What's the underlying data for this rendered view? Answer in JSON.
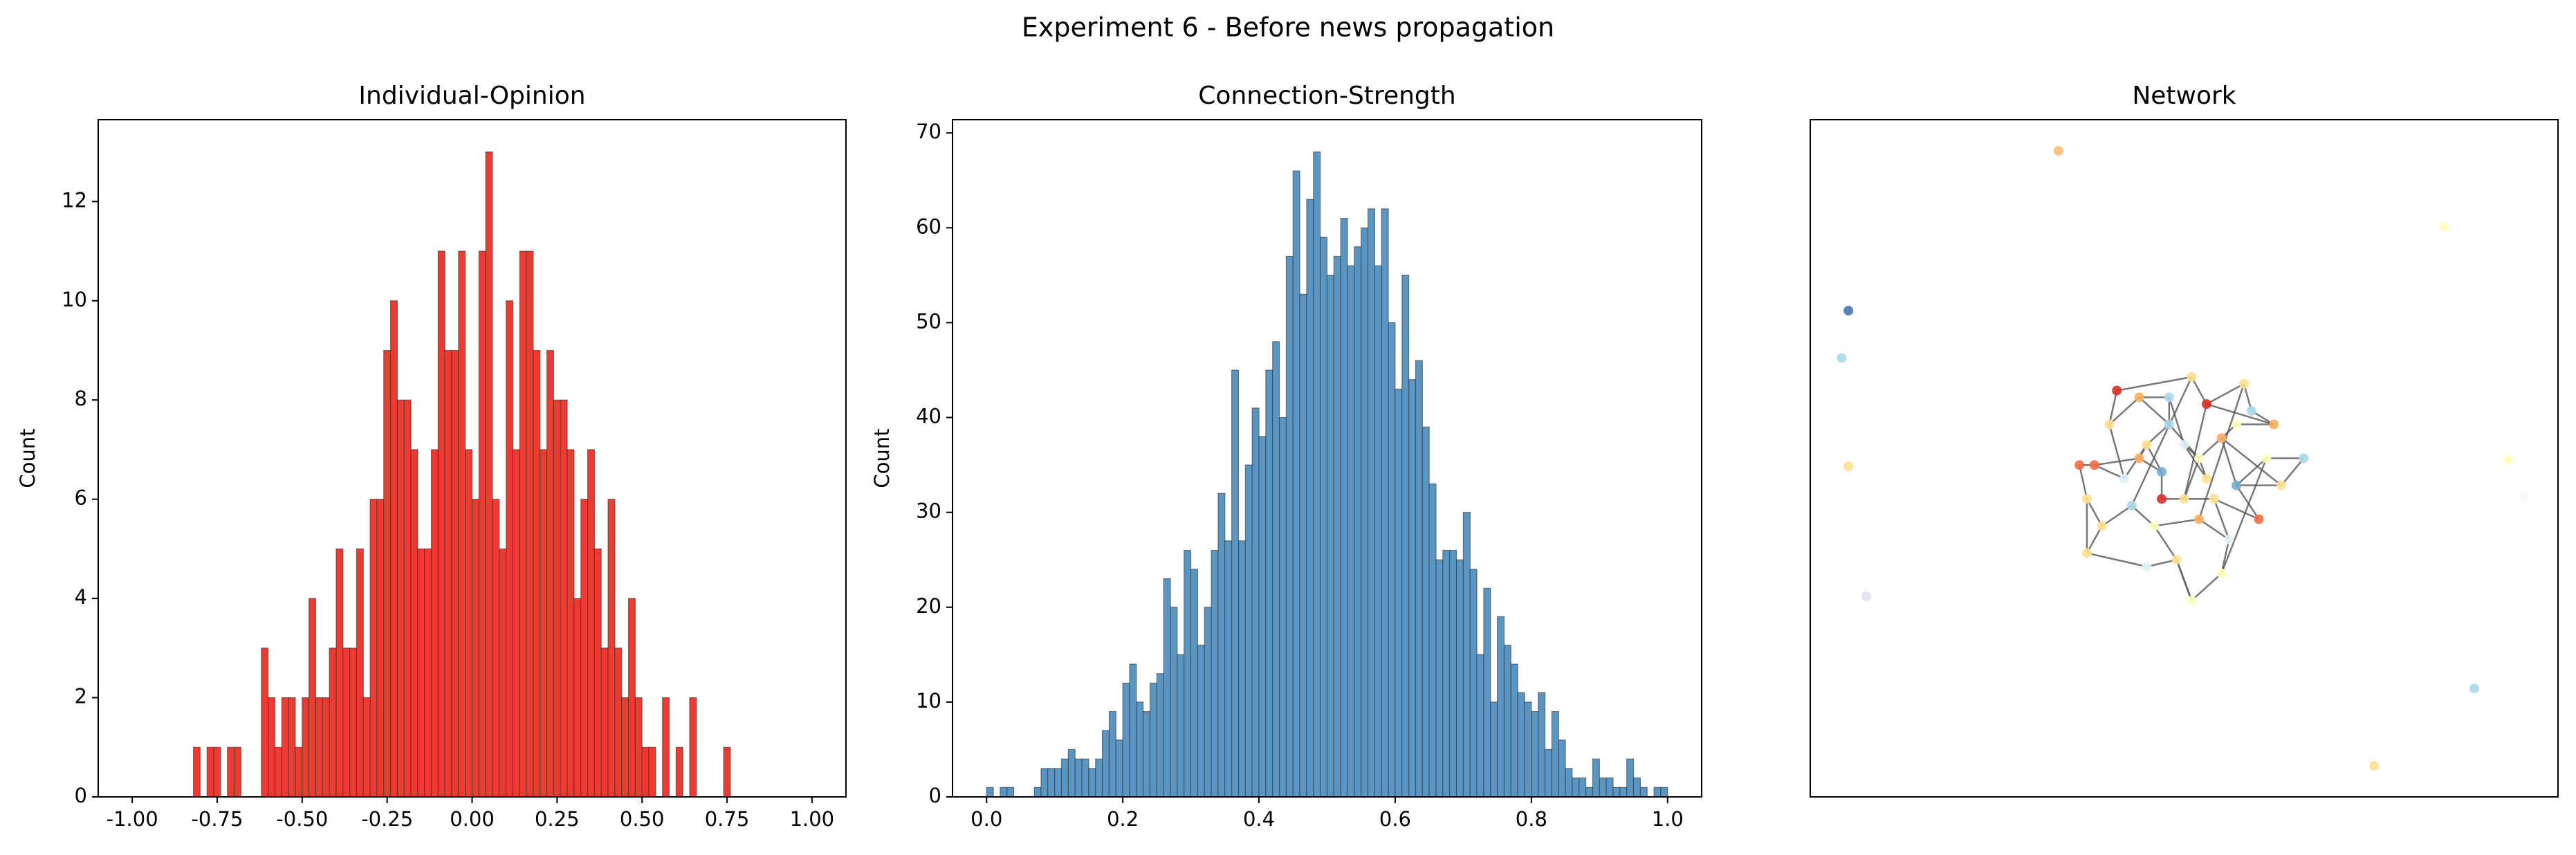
{
  "title": "Experiment 6 - Before news propagation",
  "chart_data": [
    {
      "type": "histogram",
      "title": "Individual-Opinion",
      "ylabel": "Count",
      "color": "#ee3a30",
      "bins": [
        -0.84,
        -0.82,
        -0.8,
        -0.78,
        -0.76,
        -0.74,
        -0.72,
        -0.7,
        -0.68,
        -0.66,
        -0.64,
        -0.62,
        -0.6,
        -0.58,
        -0.56,
        -0.54,
        -0.52,
        -0.5,
        -0.48,
        -0.46,
        -0.44,
        -0.42,
        -0.4,
        -0.38,
        -0.36,
        -0.34,
        -0.32,
        -0.3,
        -0.28,
        -0.26,
        -0.24,
        -0.22,
        -0.2,
        -0.18,
        -0.16,
        -0.14,
        -0.12,
        -0.1,
        -0.08,
        -0.06,
        -0.04,
        -0.02,
        0.0,
        0.02,
        0.04,
        0.06,
        0.08,
        0.1,
        0.12,
        0.14,
        0.16,
        0.18,
        0.2,
        0.22,
        0.24,
        0.26,
        0.28,
        0.3,
        0.32,
        0.34,
        0.36,
        0.38,
        0.4,
        0.42,
        0.44,
        0.46,
        0.48,
        0.5,
        0.52,
        0.54,
        0.56,
        0.58,
        0.6,
        0.62,
        0.64,
        0.66,
        0.68,
        0.7,
        0.72,
        0.74,
        0.76
      ],
      "values": [
        0,
        1,
        0,
        1,
        1,
        0,
        1,
        1,
        0,
        0,
        0,
        3,
        2,
        1,
        2,
        2,
        1,
        2,
        4,
        2,
        2,
        3,
        5,
        3,
        3,
        5,
        2,
        6,
        6,
        9,
        10,
        8,
        8,
        7,
        5,
        5,
        7,
        11,
        9,
        9,
        11,
        7,
        6,
        11,
        13,
        6,
        5,
        10,
        7,
        11,
        11,
        9,
        7,
        9,
        8,
        8,
        7,
        4,
        6,
        7,
        5,
        3,
        6,
        3,
        2,
        4,
        2,
        1,
        1,
        0,
        2,
        0,
        1,
        0,
        2,
        0,
        0,
        0,
        0,
        1
      ],
      "xlim": [
        -1.1,
        1.1
      ],
      "ylim": [
        0,
        13.65
      ],
      "xticks": [
        {
          "value": -1,
          "label": "-1.00"
        },
        -0.75,
        {
          "value": -0.5,
          "label": "-0.50"
        },
        -0.25,
        {
          "value": 0,
          "label": "0.00"
        },
        0.25,
        {
          "value": 0.5,
          "label": "0.50"
        },
        0.75,
        {
          "value": 1,
          "label": "1.00"
        }
      ],
      "yticks": [
        0,
        2,
        4,
        6,
        8,
        10,
        12
      ]
    },
    {
      "type": "histogram",
      "title": "Connection-Strength",
      "ylabel": "Count",
      "color": "#5a96c4",
      "bins": [
        0.0,
        0.01,
        0.02,
        0.03,
        0.04,
        0.05,
        0.06,
        0.07,
        0.08,
        0.09,
        0.1,
        0.11,
        0.12,
        0.13,
        0.14,
        0.15,
        0.16,
        0.17,
        0.18,
        0.19,
        0.2,
        0.21,
        0.22,
        0.23,
        0.24,
        0.25,
        0.26,
        0.27,
        0.28,
        0.29,
        0.3,
        0.31,
        0.32,
        0.33,
        0.34,
        0.35,
        0.36,
        0.37,
        0.38,
        0.39,
        0.4,
        0.41,
        0.42,
        0.43,
        0.44,
        0.45,
        0.46,
        0.47,
        0.48,
        0.49,
        0.5,
        0.51,
        0.52,
        0.53,
        0.54,
        0.55,
        0.56,
        0.57,
        0.58,
        0.59,
        0.6,
        0.61,
        0.62,
        0.63,
        0.64,
        0.65,
        0.66,
        0.67,
        0.68,
        0.69,
        0.7,
        0.71,
        0.72,
        0.73,
        0.74,
        0.75,
        0.76,
        0.77,
        0.78,
        0.79,
        0.8,
        0.81,
        0.82,
        0.83,
        0.84,
        0.85,
        0.86,
        0.87,
        0.88,
        0.89,
        0.9,
        0.91,
        0.92,
        0.93,
        0.94,
        0.95,
        0.96,
        0.97,
        0.98,
        0.99,
        1.0
      ],
      "values": [
        1,
        0,
        1,
        1,
        0,
        0,
        0,
        1,
        3,
        3,
        3,
        4,
        5,
        4,
        4,
        3,
        4,
        7,
        9,
        6,
        12,
        14,
        10,
        9,
        12,
        13,
        23,
        20,
        15,
        26,
        24,
        16,
        20,
        26,
        32,
        27,
        45,
        27,
        35,
        41,
        38,
        45,
        48,
        40,
        57,
        66,
        53,
        63,
        68,
        59,
        55,
        57,
        61,
        56,
        58,
        60,
        62,
        56,
        62,
        50,
        43,
        55,
        44,
        46,
        39,
        33,
        25,
        26,
        26,
        25,
        30,
        24,
        15,
        22,
        10,
        19,
        16,
        14,
        11,
        10,
        9,
        11,
        5,
        9,
        6,
        3,
        2,
        2,
        1,
        4,
        2,
        2,
        1,
        1,
        4,
        2,
        1,
        0,
        1,
        1
      ],
      "xlim": [
        -0.05,
        1.05
      ],
      "ylim": [
        0,
        71.4
      ],
      "xticks": [
        {
          "value": 0,
          "label": "0.0"
        },
        0.2,
        0.4,
        0.6,
        0.8,
        {
          "value": 1,
          "label": "1.0"
        }
      ],
      "yticks": [
        0,
        10,
        20,
        30,
        40,
        50,
        60,
        70
      ]
    },
    {
      "type": "network",
      "title": "Network",
      "xlim": [
        0,
        1
      ],
      "ylim": [
        0,
        1
      ],
      "edge_color": "#555555",
      "nodes": {
        "x": [
          0.332,
          0.848,
          0.051,
          0.042,
          0.051,
          0.934,
          0.954,
          0.075,
          0.888,
          0.754,
          0.45,
          0.48,
          0.52,
          0.55,
          0.42,
          0.5,
          0.57,
          0.46,
          0.53,
          0.4,
          0.59,
          0.44,
          0.51,
          0.56,
          0.49,
          0.38,
          0.61,
          0.47,
          0.54,
          0.43,
          0.58,
          0.41,
          0.52,
          0.63,
          0.45,
          0.55,
          0.37,
          0.6,
          0.48,
          0.53,
          0.66,
          0.39,
          0.57,
          0.44,
          0.5,
          0.36,
          0.51,
          0.37,
          0.62,
          0.47
        ],
        "y": [
          0.954,
          0.842,
          0.718,
          0.648,
          0.488,
          0.498,
          0.444,
          0.296,
          0.16,
          0.046,
          0.52,
          0.55,
          0.5,
          0.53,
          0.47,
          0.44,
          0.46,
          0.4,
          0.58,
          0.55,
          0.57,
          0.59,
          0.62,
          0.38,
          0.35,
          0.49,
          0.5,
          0.48,
          0.44,
          0.43,
          0.61,
          0.6,
          0.41,
          0.46,
          0.34,
          0.33,
          0.44,
          0.41,
          0.59,
          0.47,
          0.5,
          0.4,
          0.55,
          0.5,
          0.52,
          0.49,
          0.29,
          0.36,
          0.55,
          0.44
        ],
        "colors": [
          "#fdbf6f",
          "#ffffbf",
          "#4575b4",
          "#abd9e9",
          "#fee090",
          "#ffffbf",
          "#f7f7f7",
          "#e0e0f0",
          "#abd9e9",
          "#fee090",
          "#fee090",
          "#abd9e9",
          "#ffffbf",
          "#fdae61",
          "#e0f3f8",
          "#fee090",
          "#74add1",
          "#ffffbf",
          "#d73027",
          "#fee090",
          "#abd9e9",
          "#fdae61",
          "#fee090",
          "#e0f3f8",
          "#fee090",
          "#f46d43",
          "#ffffbf",
          "#74add1",
          "#fee090",
          "#abd9e9",
          "#fee090",
          "#d73027",
          "#fdae61",
          "#fee090",
          "#e0f3f8",
          "#ffffbf",
          "#fee090",
          "#f46d43",
          "#abd9e9",
          "#fee090",
          "#abd9e9",
          "#fee090",
          "#ffffbf",
          "#fdae61",
          "#e0f3f8",
          "#f46d43",
          "#ffffbf",
          "#fee090",
          "#fdae61",
          "#d73027"
        ]
      },
      "edges": [
        [
          10,
          11
        ],
        [
          10,
          14
        ],
        [
          10,
          27
        ],
        [
          11,
          12
        ],
        [
          11,
          21
        ],
        [
          12,
          13
        ],
        [
          12,
          15
        ],
        [
          12,
          39
        ],
        [
          13,
          16
        ],
        [
          13,
          42
        ],
        [
          14,
          19
        ],
        [
          14,
          25
        ],
        [
          15,
          18
        ],
        [
          15,
          28
        ],
        [
          16,
          26
        ],
        [
          16,
          33
        ],
        [
          17,
          24
        ],
        [
          17,
          29
        ],
        [
          18,
          22
        ],
        [
          18,
          30
        ],
        [
          19,
          31
        ],
        [
          20,
          30
        ],
        [
          20,
          48
        ],
        [
          21,
          38
        ],
        [
          22,
          29
        ],
        [
          23,
          28
        ],
        [
          23,
          35
        ],
        [
          24,
          34
        ],
        [
          24,
          46
        ],
        [
          25,
          45
        ],
        [
          26,
          40
        ],
        [
          27,
          49
        ],
        [
          28,
          37
        ],
        [
          29,
          41
        ],
        [
          30,
          32
        ],
        [
          31,
          22
        ],
        [
          32,
          23
        ],
        [
          33,
          40
        ],
        [
          34,
          47
        ],
        [
          35,
          26
        ],
        [
          36,
          41
        ],
        [
          37,
          16
        ],
        [
          38,
          44
        ],
        [
          39,
          44
        ],
        [
          41,
          47
        ],
        [
          42,
          48
        ],
        [
          43,
          25
        ],
        [
          44,
          12
        ],
        [
          45,
          36
        ],
        [
          46,
          35
        ],
        [
          47,
          36
        ],
        [
          49,
          15
        ],
        [
          43,
          27
        ],
        [
          11,
          38
        ],
        [
          13,
          33
        ],
        [
          19,
          21
        ],
        [
          17,
          32
        ],
        [
          24,
          46
        ],
        [
          18,
          48
        ],
        [
          10,
          43
        ]
      ]
    }
  ]
}
